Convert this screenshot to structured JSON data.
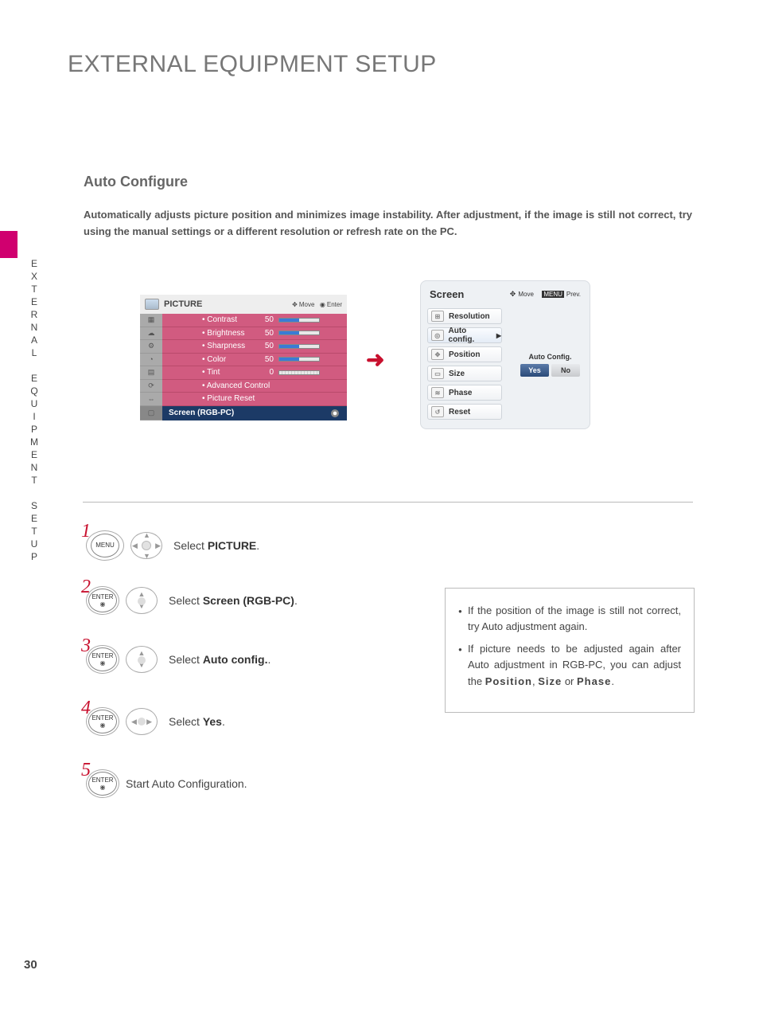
{
  "page": {
    "title": "EXTERNAL EQUIPMENT SETUP",
    "side_label": "EXTERNAL EQUIPMENT SETUP",
    "section_title": "Auto Configure",
    "description": "Automatically adjusts picture position and minimizes image instability. After adjustment, if the image is still not correct, try using the manual settings or a different resolution or refresh rate on the PC.",
    "page_number": "30"
  },
  "picture_menu": {
    "title": "PICTURE",
    "move_hint": "Move",
    "enter_hint": "Enter",
    "rows": [
      {
        "label": "• Contrast",
        "value": "50"
      },
      {
        "label": "• Brightness",
        "value": "50"
      },
      {
        "label": "• Sharpness",
        "value": "50"
      },
      {
        "label": "• Color",
        "value": "50"
      },
      {
        "label": "• Tint",
        "value": "0"
      },
      {
        "label": "• Advanced Control",
        "value": ""
      },
      {
        "label": "• Picture Reset",
        "value": ""
      }
    ],
    "highlight": "Screen (RGB-PC)",
    "colors": {
      "row": "#d15b80",
      "highlight": "#1c3a66",
      "bar_fill": "#3a7bd5"
    }
  },
  "screen_menu": {
    "title": "Screen",
    "move_hint": "Move",
    "prev_hint": "Prev.",
    "menu_btn": "MENU",
    "items": [
      {
        "label": "Resolution"
      },
      {
        "label": "Auto config.",
        "selected": true,
        "arrow": "▶"
      },
      {
        "label": "Position"
      },
      {
        "label": "Size"
      },
      {
        "label": "Phase"
      },
      {
        "label": "Reset"
      }
    ],
    "popup": {
      "title": "Auto Config.",
      "yes": "Yes",
      "no": "No"
    }
  },
  "steps": {
    "btn_menu": "MENU",
    "btn_enter": "ENTER",
    "s1": {
      "num": "1",
      "text_a": "Select ",
      "text_b": "PICTURE",
      "text_c": "."
    },
    "s2": {
      "num": "2",
      "text_a": "Select ",
      "text_b": "Screen (RGB-PC)",
      "text_c": "."
    },
    "s3": {
      "num": "3",
      "text_a": "Select ",
      "text_b": "Auto config.",
      "text_c": "."
    },
    "s4": {
      "num": "4",
      "text_a": "Select ",
      "text_b": "Yes",
      "text_c": "."
    },
    "s5": {
      "num": "5",
      "text_a": "Start Auto Configuration."
    }
  },
  "notes": {
    "n1": "If the position of the image is still not correct, try Auto adjustment again.",
    "n2_a": "If picture needs to be adjusted again after Auto adjustment in RGB-PC, you can adjust the ",
    "n2_b": "Position",
    "n2_c": ", ",
    "n2_d": "Size",
    "n2_e": " or ",
    "n2_f": "Phase",
    "n2_g": "."
  }
}
